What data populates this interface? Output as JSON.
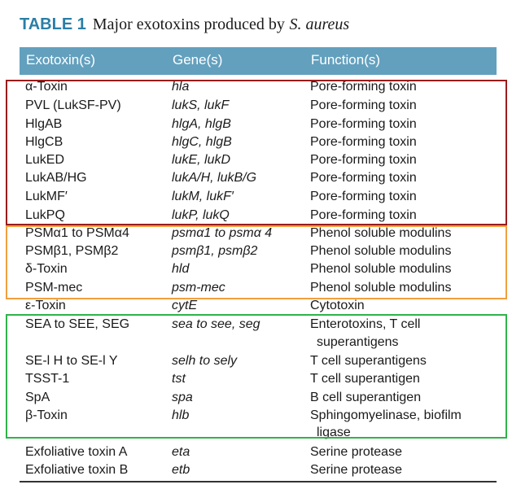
{
  "caption": {
    "label": "TABLE 1",
    "title": "Major exotoxins produced by",
    "organism": "S. aureus"
  },
  "headers": [
    "Exotoxin(s)",
    "Gene(s)",
    "Function(s)"
  ],
  "rows": [
    {
      "exotoxin": "α-Toxin",
      "genes": "hla",
      "function": "Pore-forming toxin"
    },
    {
      "exotoxin": "PVL (LukSF-PV)",
      "genes": "lukS, lukF",
      "function": "Pore-forming toxin"
    },
    {
      "exotoxin": "HlgAB",
      "genes": "hlgA, hlgB",
      "function": "Pore-forming toxin"
    },
    {
      "exotoxin": "HlgCB",
      "genes": "hlgC, hlgB",
      "function": "Pore-forming toxin"
    },
    {
      "exotoxin": "LukED",
      "genes": "lukE, lukD",
      "function": "Pore-forming toxin"
    },
    {
      "exotoxin": "LukAB/HG",
      "genes": "lukA/H, lukB/G",
      "function": "Pore-forming toxin"
    },
    {
      "exotoxin": "LukMF′",
      "genes": "lukM, lukF′",
      "function": "Pore-forming toxin"
    },
    {
      "exotoxin": "LukPQ",
      "genes": "lukP, lukQ",
      "function": "Pore-forming toxin"
    },
    {
      "exotoxin": "PSMα1 to PSMα4",
      "genes": "psmα1 to psmα 4",
      "function": "Phenol soluble modulins"
    },
    {
      "exotoxin": "PSMβ1, PSMβ2",
      "genes": "psmβ1, psmβ2",
      "function": "Phenol soluble modulins"
    },
    {
      "exotoxin": "δ-Toxin",
      "genes": "hld",
      "function": "Phenol soluble modulins"
    },
    {
      "exotoxin": "PSM-mec",
      "genes": "psm-mec",
      "function": "Phenol soluble modulins"
    },
    {
      "exotoxin": "ε-Toxin",
      "genes": "cytE",
      "function": "Cytotoxin"
    },
    {
      "exotoxin": "SEA to SEE, SEG",
      "genes": "sea to see, seg",
      "function": "Enterotoxins, T cell",
      "function_cont": "superantigens"
    },
    {
      "exotoxin": "SE-l H to SE-l Y",
      "genes": "selh to sely",
      "function": "T cell superantigens"
    },
    {
      "exotoxin": "TSST-1",
      "genes": "tst",
      "function": "T cell superantigen"
    },
    {
      "exotoxin": "SpA",
      "genes": "spa",
      "function": "B cell superantigen"
    },
    {
      "exotoxin": "β-Toxin",
      "genes": "hlb",
      "function": "Sphingomyelinase, biofilm",
      "function_cont": "ligase"
    },
    {
      "exotoxin": "Exfoliative toxin A",
      "genes": "eta",
      "function": "Serine protease"
    },
    {
      "exotoxin": "Exfoliative toxin B",
      "genes": "etb",
      "function": "Serine protease"
    }
  ],
  "colors": {
    "header_bg": "#63a0be",
    "label_color": "#2a7ea6",
    "box_pore_forming": "#9b1c1c",
    "box_psm": "#f0a040",
    "box_superantigens": "#2fb34a"
  }
}
